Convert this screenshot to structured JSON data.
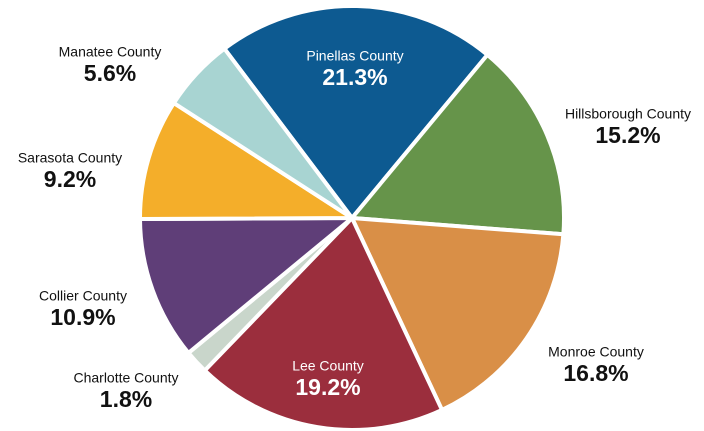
{
  "chart_data": {
    "type": "pie",
    "categories": [
      "Pinellas County",
      "Hillsborough County",
      "Monroe County",
      "Lee County",
      "Charlotte County",
      "Collier County",
      "Sarasota County",
      "Manatee County"
    ],
    "values": [
      21.3,
      15.2,
      16.8,
      19.2,
      1.8,
      10.9,
      9.2,
      5.6
    ],
    "value_labels": [
      "21.3%",
      "15.2%",
      "16.8%",
      "19.2%",
      "1.8%",
      "10.9%",
      "9.2%",
      "5.6%"
    ],
    "colors": [
      "#0d5a91",
      "#66944a",
      "#d98f47",
      "#9b2e3d",
      "#c9d6cb",
      "#5f3e78",
      "#f4ae2a",
      "#a8d4d2"
    ]
  }
}
